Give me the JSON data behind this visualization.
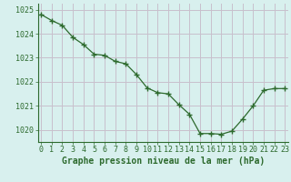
{
  "x": [
    0,
    1,
    2,
    3,
    4,
    5,
    6,
    7,
    8,
    9,
    10,
    11,
    12,
    13,
    14,
    15,
    16,
    17,
    18,
    19,
    20,
    21,
    22,
    23
  ],
  "y": [
    1024.8,
    1024.55,
    1024.35,
    1023.85,
    1023.55,
    1023.15,
    1023.1,
    1022.85,
    1022.75,
    1022.3,
    1021.75,
    1021.55,
    1021.5,
    1021.05,
    1020.65,
    1019.85,
    1019.85,
    1019.82,
    1019.95,
    1020.45,
    1021.0,
    1021.65,
    1021.72,
    1021.72
  ],
  "ylim": [
    1019.5,
    1025.25
  ],
  "yticks": [
    1020,
    1021,
    1022,
    1023,
    1024,
    1025
  ],
  "xticks": [
    0,
    1,
    2,
    3,
    4,
    5,
    6,
    7,
    8,
    9,
    10,
    11,
    12,
    13,
    14,
    15,
    16,
    17,
    18,
    19,
    20,
    21,
    22,
    23
  ],
  "line_color": "#2d6a2d",
  "marker_color": "#2d6a2d",
  "bg_color": "#d8f0ee",
  "grid_color": "#c8c0cc",
  "xlabel": "Graphe pression niveau de la mer (hPa)",
  "xlabel_color": "#2d6a2d",
  "tick_color": "#2d6a2d",
  "axis_color": "#2d6a2d",
  "label_fontsize": 6.0,
  "xlabel_fontsize": 7.0
}
